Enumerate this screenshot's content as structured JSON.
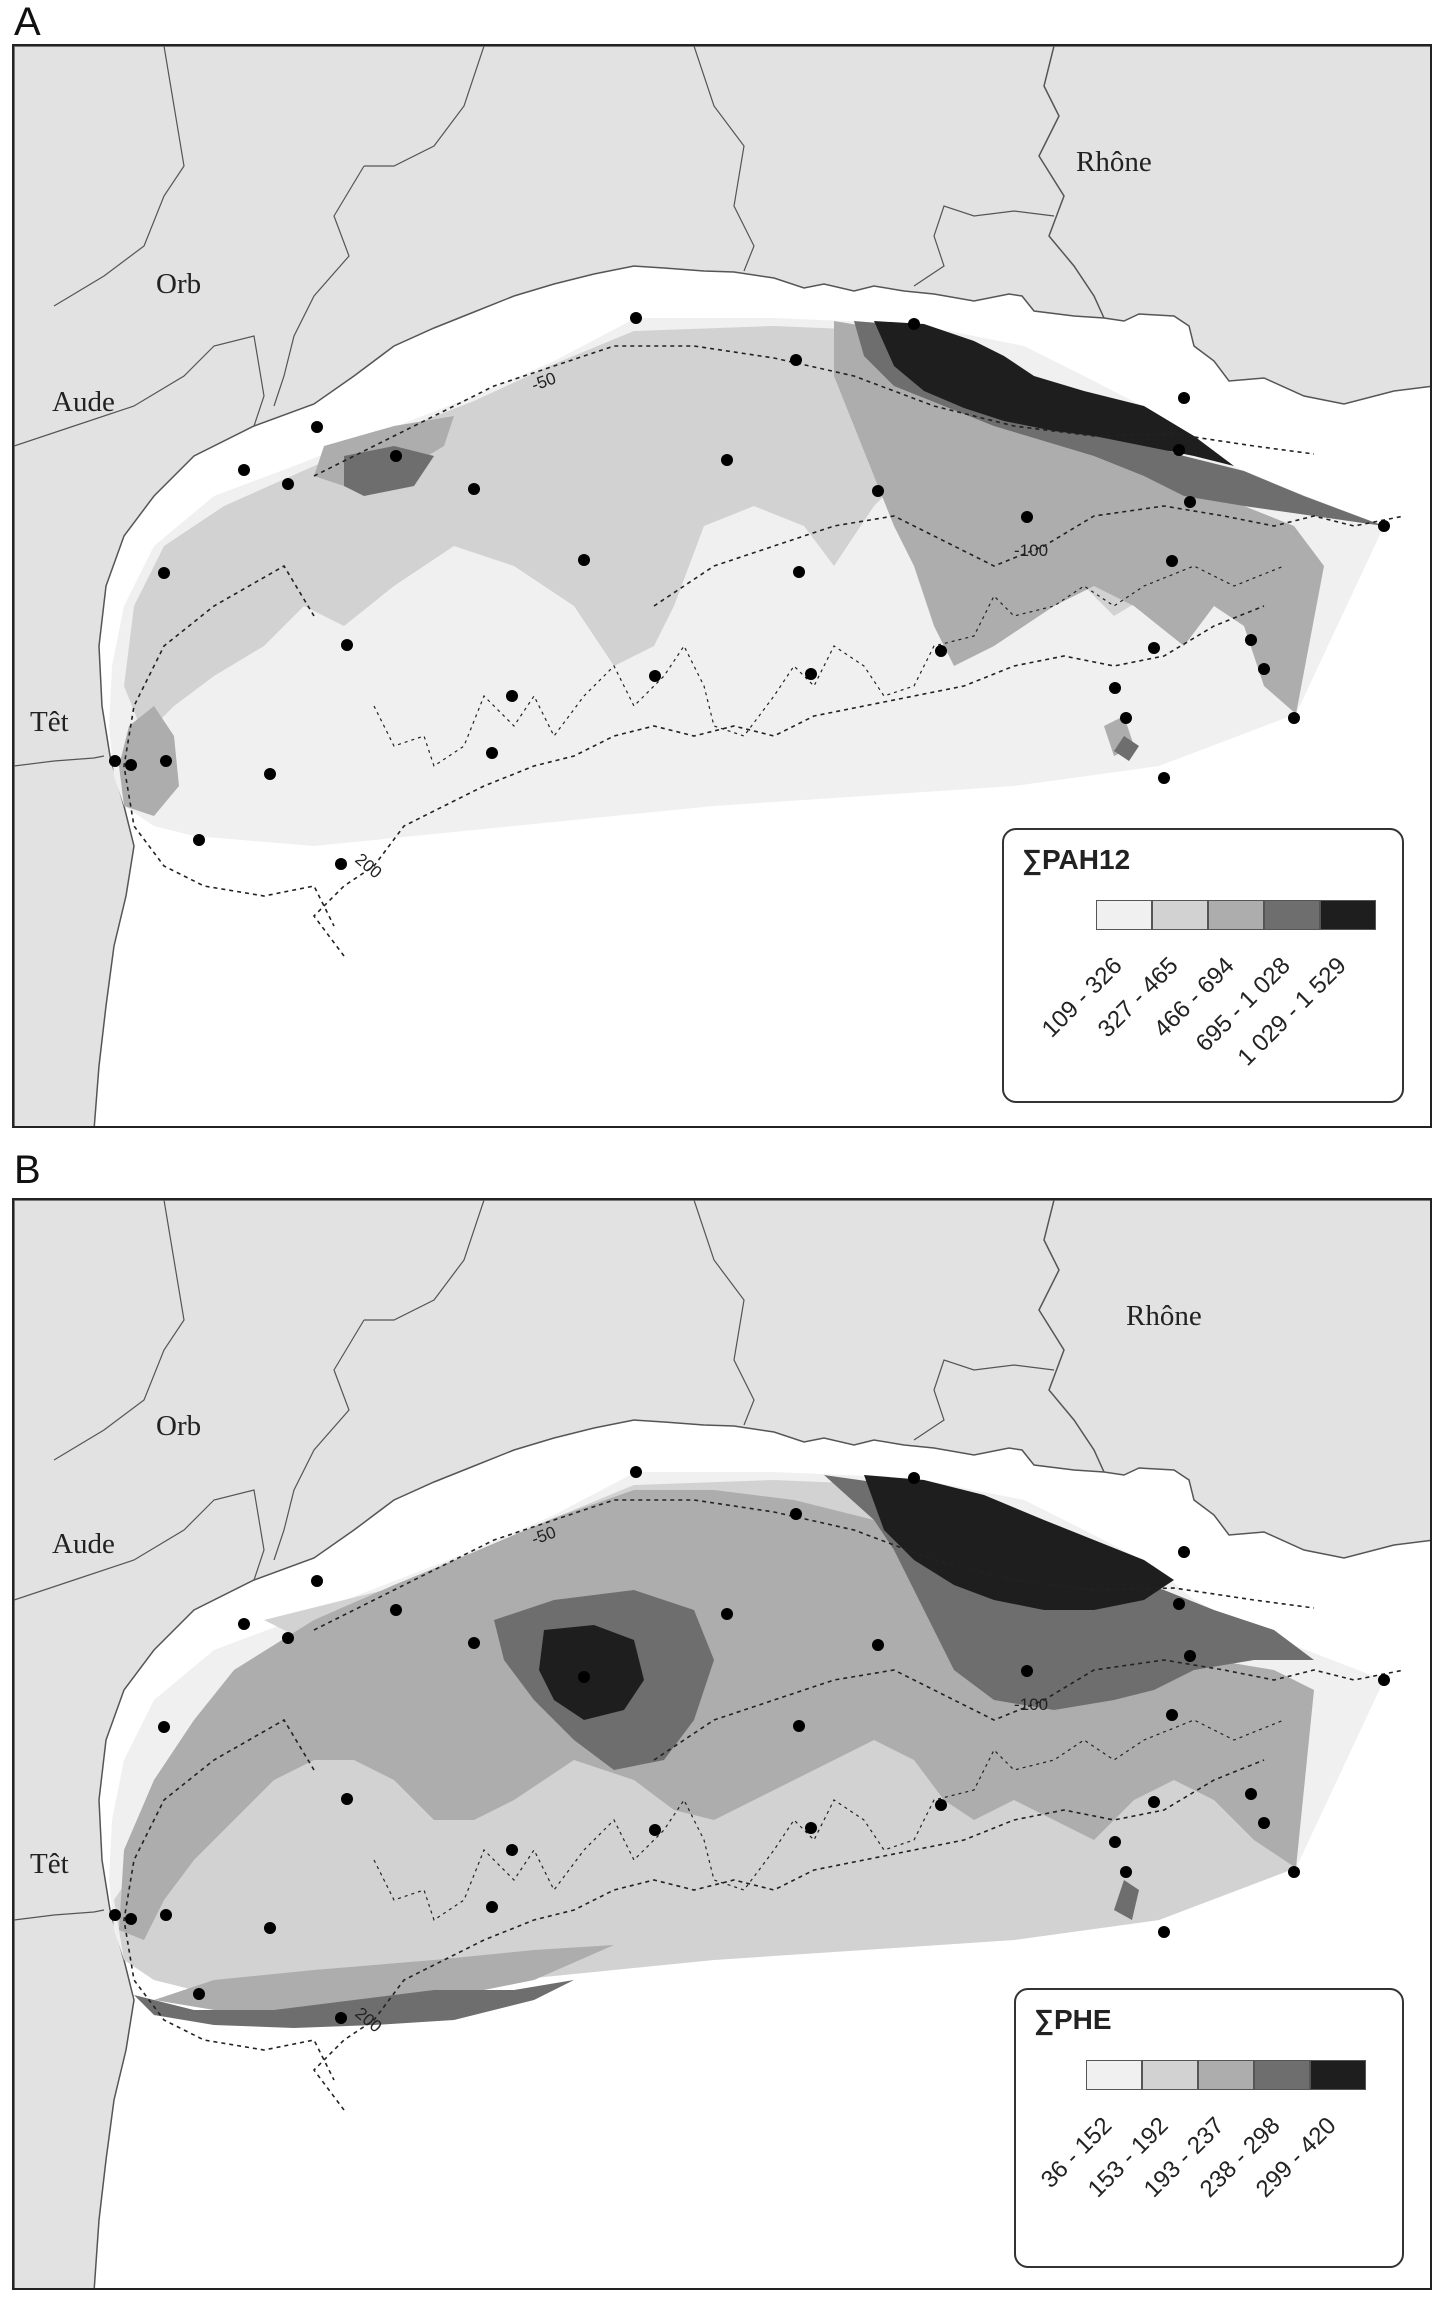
{
  "panels": [
    {
      "letter": "A",
      "legend_title": "∑PAH12",
      "classes": [
        {
          "label": "109 - 326",
          "color": "#f0f0f0"
        },
        {
          "label": "327 - 465",
          "color": "#d2d2d2"
        },
        {
          "label": "466 - 694",
          "color": "#adadad"
        },
        {
          "label": "695 - 1 028",
          "color": "#6e6e6e"
        },
        {
          "label": "1 029 - 1 529",
          "color": "#1e1e1e"
        }
      ],
      "place_names": {
        "rhone": "Rhône",
        "orb": "Orb",
        "aude": "Aude",
        "tet": "Têt"
      },
      "isobaths": {
        "d50": "-50",
        "d100": "-100",
        "d200": "200"
      }
    },
    {
      "letter": "B",
      "legend_title": "∑PHE",
      "classes": [
        {
          "label": "36 - 152",
          "color": "#f0f0f0"
        },
        {
          "label": "153 - 192",
          "color": "#d2d2d2"
        },
        {
          "label": "193 - 237",
          "color": "#adadad"
        },
        {
          "label": "238 - 298",
          "color": "#6e6e6e"
        },
        {
          "label": "299 - 420",
          "color": "#1e1e1e"
        }
      ],
      "place_names": {
        "rhone": "Rhône",
        "orb": "Orb",
        "aude": "Aude",
        "tet": "Têt"
      },
      "isobaths": {
        "d50": "-50",
        "d100": "-100",
        "d200": "200"
      }
    }
  ],
  "colors": {
    "land": "#e2e2e2",
    "sea": "#ffffff",
    "station": "#000000",
    "coast": "#555555"
  }
}
